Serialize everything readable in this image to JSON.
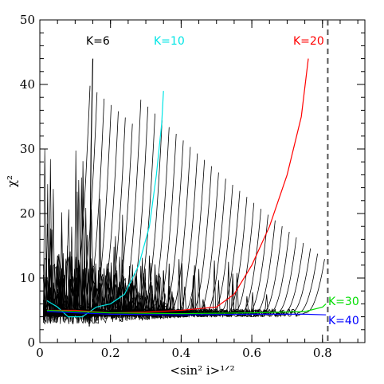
{
  "chart_data": {
    "type": "line",
    "xlabel": "<sin² i>¹ᐟ²",
    "ylabel": "χ²",
    "xlim": [
      0,
      0.92
    ],
    "ylim": [
      0,
      50
    ],
    "x_ticks": [
      "0",
      "0.2",
      "0.4",
      "0.6",
      "0.8"
    ],
    "y_ticks": [
      "0",
      "10",
      "20",
      "30",
      "40",
      "50"
    ],
    "cutoff_line_x": 0.815,
    "labels": [
      {
        "text": "K=6",
        "color": "#000000"
      },
      {
        "text": "K=10",
        "color": "#00e5e5"
      },
      {
        "text": "K=20",
        "color": "#ff0000"
      },
      {
        "text": "K=30",
        "color": "#00dd00"
      },
      {
        "text": "K=40",
        "color": "#0000ff"
      }
    ],
    "series": [
      {
        "name": "K=6",
        "color": "#000000",
        "x": [
          0.14,
          0.145,
          0.15
        ],
        "y": [
          2.5,
          30,
          44
        ]
      },
      {
        "name": "K=10",
        "color": "#00e5e5",
        "x": [
          0.02,
          0.05,
          0.08,
          0.12,
          0.16,
          0.2,
          0.24,
          0.28,
          0.31,
          0.33,
          0.345,
          0.35
        ],
        "y": [
          6.5,
          5.5,
          4.0,
          4.0,
          5.5,
          6.0,
          7.5,
          12,
          18,
          26,
          34,
          39
        ]
      },
      {
        "name": "K=20",
        "color": "#ff0000",
        "x": [
          0.02,
          0.1,
          0.2,
          0.3,
          0.4,
          0.5,
          0.55,
          0.6,
          0.65,
          0.7,
          0.74,
          0.76
        ],
        "y": [
          5.0,
          5.0,
          4.6,
          4.7,
          5.0,
          5.5,
          7.5,
          12,
          18,
          26,
          35,
          44
        ]
      },
      {
        "name": "K=30",
        "color": "#00dd00",
        "x": [
          0.02,
          0.2,
          0.4,
          0.6,
          0.75,
          0.8,
          0.81
        ],
        "y": [
          5.0,
          4.6,
          4.5,
          4.6,
          4.8,
          5.5,
          6.0
        ]
      },
      {
        "name": "K=40",
        "color": "#0000ff",
        "x": [
          0.02,
          0.2,
          0.4,
          0.6,
          0.75,
          0.81
        ],
        "y": [
          4.8,
          4.4,
          4.3,
          4.4,
          4.4,
          4.3
        ]
      }
    ],
    "bundle": {
      "count": 34,
      "x_start": 0.145,
      "x_end": 0.81,
      "y_floor": 4.6,
      "y_top_min": 8,
      "y_top_max": 44
    },
    "noise_region": {
      "x_start": 0.01,
      "x_end": 0.12,
      "y_min": 3,
      "y_max": 30
    }
  }
}
